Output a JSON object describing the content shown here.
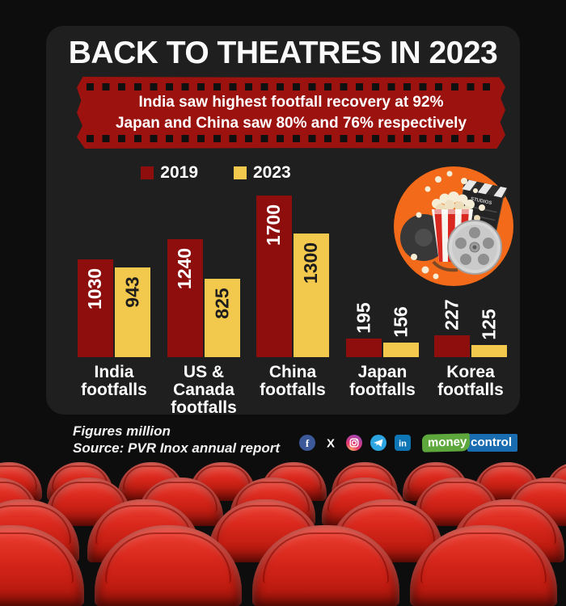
{
  "title": "BACK TO THEATRES IN 2023",
  "banner": {
    "line1": "India saw highest footfall recovery at 92%",
    "line2": "Japan and China saw 80% and 76% respectively"
  },
  "legend": [
    {
      "label": "2019",
      "color": "#8e0e0e"
    },
    {
      "label": "2023",
      "color": "#f2c94c"
    }
  ],
  "chart_data": {
    "type": "bar",
    "title": "BACK TO THEATRES IN 2023",
    "subtitle": "India saw highest footfall recovery at 92%; Japan and China saw 80% and 76% respectively",
    "unit": "Figures million",
    "categories": [
      "India footfalls",
      "US & Canada footfalls",
      "China footfalls",
      "Japan footfalls",
      "Korea footfalls"
    ],
    "category_lines": [
      [
        "India",
        "footfalls"
      ],
      [
        "US &",
        "Canada",
        "footfalls"
      ],
      [
        "China",
        "footfalls"
      ],
      [
        "Japan",
        "footfalls"
      ],
      [
        "Korea",
        "footfalls"
      ]
    ],
    "series": [
      {
        "name": "2019",
        "color": "#8e0e0e",
        "label_color": "#ffffff",
        "values": [
          1030,
          1240,
          1700,
          195,
          227
        ]
      },
      {
        "name": "2023",
        "color": "#f2c94c",
        "label_color": "#1d1d1d",
        "values": [
          943,
          825,
          1300,
          156,
          125
        ]
      }
    ],
    "ylim": [
      0,
      1700
    ],
    "grid": false,
    "legend_position": "top"
  },
  "footer": {
    "note1": "Figures million",
    "note2": "Source: PVR Inox annual report",
    "logo": {
      "money": "money",
      "control": "control"
    }
  },
  "social_icons": [
    "facebook",
    "x",
    "instagram",
    "telegram",
    "linkedin"
  ],
  "colors": {
    "background": "#0d0d0d",
    "panel": "#1f1f1f",
    "banner_red": "#9c120e",
    "bar_2019": "#8e0e0e",
    "bar_2023": "#f2c94c",
    "seat_red": "#d7261b",
    "illustration_orange": "#f26a1a",
    "facebook_blue": "#3b5998",
    "telegram_blue": "#2ca5e0",
    "linkedin_blue": "#0f76b6",
    "moneycontrol_green": "#5ea73c",
    "moneycontrol_blue": "#1a6cb0"
  }
}
